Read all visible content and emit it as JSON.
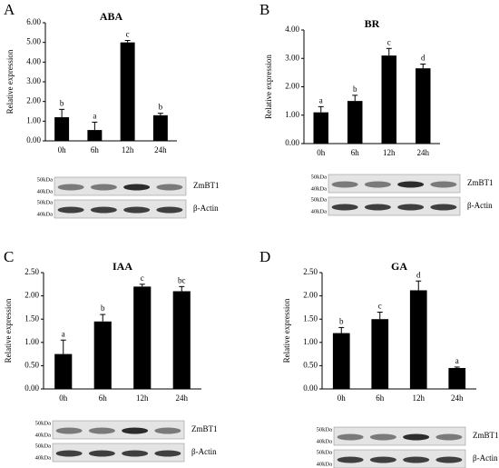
{
  "chart_data": [
    {
      "type": "bar",
      "panel": "A",
      "title": "ABA",
      "y_label": "Relative expression",
      "color": "#000000",
      "categories": [
        "0h",
        "6h",
        "12h",
        "24h"
      ],
      "values": [
        1.2,
        0.55,
        5.0,
        1.3
      ],
      "errors": [
        0.4,
        0.4,
        0.1,
        0.1
      ],
      "letters": [
        "b",
        "a",
        "c",
        "b"
      ],
      "ylim": [
        0,
        6
      ],
      "yticks": [
        {
          "value": 0,
          "label": "0.00"
        },
        {
          "value": 1,
          "label": "1.00"
        },
        {
          "value": 2,
          "label": "2.00"
        },
        {
          "value": 3,
          "label": "3.00"
        },
        {
          "value": 4,
          "label": "4.00"
        },
        {
          "value": 5,
          "label": "5.00"
        },
        {
          "value": 6,
          "label": "6.00"
        }
      ],
      "blots": [
        {
          "label": "ZmBT1",
          "markers": [
            "50kDa",
            "40kDa"
          ]
        },
        {
          "label": "β-Actin",
          "markers": [
            "50kDa",
            "40kDa"
          ]
        }
      ]
    },
    {
      "type": "bar",
      "panel": "B",
      "title": "BR",
      "y_label": "Relative expression",
      "color": "#000000",
      "categories": [
        "0h",
        "6h",
        "12h",
        "24h"
      ],
      "values": [
        1.1,
        1.5,
        3.1,
        2.65
      ],
      "errors": [
        0.2,
        0.2,
        0.25,
        0.15
      ],
      "letters": [
        "a",
        "b",
        "c",
        "d"
      ],
      "ylim": [
        0,
        4
      ],
      "yticks": [
        {
          "value": 0,
          "label": "0.00"
        },
        {
          "value": 1,
          "label": "1.00"
        },
        {
          "value": 2,
          "label": "2.00"
        },
        {
          "value": 3,
          "label": "3.00"
        },
        {
          "value": 4,
          "label": "4.00"
        }
      ],
      "blots": [
        {
          "label": "ZmBT1",
          "markers": [
            "50kDa",
            "40kDa"
          ]
        },
        {
          "label": "β-Actin",
          "markers": [
            "50kDa",
            "40kDa"
          ]
        }
      ]
    },
    {
      "type": "bar",
      "panel": "C",
      "title": "IAA",
      "y_label": "Relative expression",
      "color": "#000000",
      "categories": [
        "0h",
        "6h",
        "12h",
        "24h"
      ],
      "values": [
        0.75,
        1.45,
        2.2,
        2.1
      ],
      "errors": [
        0.3,
        0.15,
        0.05,
        0.1
      ],
      "letters": [
        "a",
        "b",
        "c",
        "bc"
      ],
      "ylim": [
        0,
        2.5
      ],
      "yticks": [
        {
          "value": 0,
          "label": "0.00"
        },
        {
          "value": 0.5,
          "label": "0.50"
        },
        {
          "value": 1,
          "label": "1.00"
        },
        {
          "value": 1.5,
          "label": "1.50"
        },
        {
          "value": 2,
          "label": "2.00"
        },
        {
          "value": 2.5,
          "label": "2.50"
        }
      ],
      "blots": [
        {
          "label": "ZmBT1",
          "markers": [
            "50kDa",
            "40kDa"
          ]
        },
        {
          "label": "β-Actin",
          "markers": [
            "50kDa",
            "40kDa"
          ]
        }
      ]
    },
    {
      "type": "bar",
      "panel": "D",
      "title": "GA",
      "y_label": "Relative expression",
      "color": "#000000",
      "categories": [
        "0h",
        "6h",
        "12h",
        "24h"
      ],
      "values": [
        1.2,
        1.5,
        2.12,
        0.45
      ],
      "errors": [
        0.12,
        0.15,
        0.2,
        0.02
      ],
      "letters": [
        "b",
        "c",
        "d",
        "a"
      ],
      "ylim": [
        0,
        2.5
      ],
      "yticks": [
        {
          "value": 0,
          "label": "0.00"
        },
        {
          "value": 0.5,
          "label": "0.50"
        },
        {
          "value": 1,
          "label": "1.00"
        },
        {
          "value": 1.5,
          "label": "1.50"
        },
        {
          "value": 2,
          "label": "2.00"
        },
        {
          "value": 2.5,
          "label": "2.50"
        }
      ],
      "blots": [
        {
          "label": "ZmBT1",
          "markers": [
            "50kDa",
            "40kDa"
          ]
        },
        {
          "label": "β-Actin",
          "markers": [
            "50kDa",
            "40kDa"
          ]
        }
      ]
    }
  ]
}
